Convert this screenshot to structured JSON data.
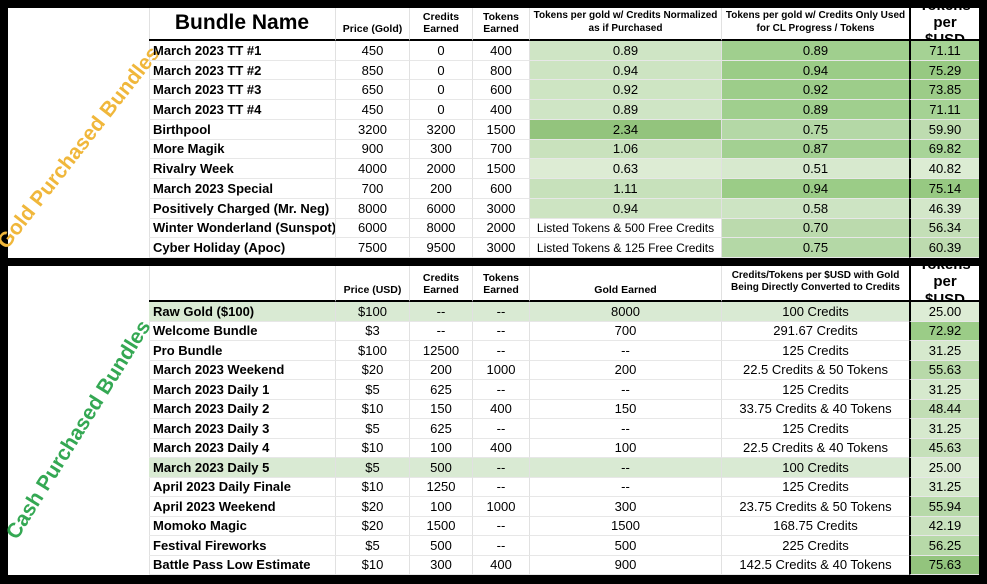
{
  "colors": {
    "gold_label": "#F0B73B",
    "green_label": "#34A853",
    "row_highlight": "#D9EAD3",
    "dark_green_max": "#93C47D"
  },
  "gold_table": {
    "section_label": "Gold Purchased Bundles",
    "headers": {
      "bundle": "Bundle Name",
      "price": "Price (Gold)",
      "credits": "Credits Earned",
      "tokens": "Tokens Earned",
      "c5": "Tokens per gold w/ Credits Normalized as if Purchased",
      "c6": "Tokens per gold w/ Credits Only Used for CL Progress / Tokens",
      "c7": "Tokens per $USD"
    },
    "rows": [
      {
        "name": "March 2023 TT #1",
        "price": "450",
        "credits": "0",
        "tokens": "400",
        "c5": "0.89",
        "c5bg": "#cfe5c5",
        "c6": "0.89",
        "c6bg": "#a0cf8e",
        "c7": "71.11",
        "c7bg": "#a5d294"
      },
      {
        "name": "March 2023 TT #2",
        "price": "850",
        "credits": "0",
        "tokens": "800",
        "c5": "0.94",
        "c5bg": "#cde4c2",
        "c6": "0.94",
        "c6bg": "#9bcc87",
        "c7": "75.29",
        "c7bg": "#97c982"
      },
      {
        "name": "March 2023 TT #3",
        "price": "650",
        "credits": "0",
        "tokens": "600",
        "c5": "0.92",
        "c5bg": "#cee5c3",
        "c6": "0.92",
        "c6bg": "#9dcd8a",
        "c7": "73.85",
        "c7bg": "#9ccc88"
      },
      {
        "name": "March 2023 TT #4",
        "price": "450",
        "credits": "0",
        "tokens": "400",
        "c5": "0.89",
        "c5bg": "#cfe5c5",
        "c6": "0.89",
        "c6bg": "#a0cf8e",
        "c7": "71.11",
        "c7bg": "#a5d294"
      },
      {
        "name": "Birthpool",
        "price": "3200",
        "credits": "3200",
        "tokens": "1500",
        "c5": "2.34",
        "c5bg": "#93c47d",
        "c6": "0.75",
        "c6bg": "#b4d8a6",
        "c7": "59.90",
        "c7bg": "#bedcb0"
      },
      {
        "name": "More Magik",
        "price": "900",
        "credits": "300",
        "tokens": "700",
        "c5": "1.06",
        "c5bg": "#c9e2bd",
        "c6": "0.87",
        "c6bg": "#a3d092",
        "c7": "69.82",
        "c7bg": "#a8d498"
      },
      {
        "name": "Rivalry Week",
        "price": "4000",
        "credits": "2000",
        "tokens": "1500",
        "c5": "0.63",
        "c5bg": "#ddecd4",
        "c6": "0.51",
        "c6bg": "#d7e9ce",
        "c7": "40.82",
        "c7bg": "#dcecd3"
      },
      {
        "name": "March 2023 Special",
        "price": "700",
        "credits": "200",
        "tokens": "600",
        "c5": "1.11",
        "c5bg": "#c7e1bb",
        "c6": "0.94",
        "c6bg": "#9bcc87",
        "c7": "75.14",
        "c7bg": "#97c982"
      },
      {
        "name": "Positively Charged (Mr. Neg)",
        "price": "8000",
        "credits": "6000",
        "tokens": "3000",
        "c5": "0.94",
        "c5bg": "#cde4c2",
        "c6": "0.58",
        "c6bg": "#cde4c3",
        "c7": "46.39",
        "c7bg": "#d3e7c9"
      },
      {
        "name": "Winter Wonderland (Sunspot)",
        "price": "6000",
        "credits": "8000",
        "tokens": "2000",
        "c5": "Listed Tokens & 500 Free Credits",
        "c5bg": null,
        "c6": "0.70",
        "c6bg": "#bbdaad",
        "c7": "56.34",
        "c7bg": "#c4dfb7"
      },
      {
        "name": "Cyber Holiday (Apoc)",
        "price": "7500",
        "credits": "9500",
        "tokens": "3000",
        "c5": "Listed Tokens & 125 Free Credits",
        "c5bg": null,
        "c6": "0.75",
        "c6bg": "#b4d8a6",
        "c7": "60.39",
        "c7bg": "#bddbaf"
      }
    ]
  },
  "cash_table": {
    "section_label": "Cash Purchased Bundles",
    "headers": {
      "bundle": "",
      "price": "Price (USD)",
      "credits": "Credits Earned",
      "tokens": "Tokens Earned",
      "c5": "Gold Earned",
      "c6": "Credits/Tokens per $USD with Gold Being Directly Converted to Credits",
      "c7": "Tokens per $USD"
    },
    "rows": [
      {
        "name": "Raw Gold ($100)",
        "price": "$100",
        "credits": "--",
        "tokens": "--",
        "c5": "8000",
        "c6": "100 Credits",
        "c7": "25.00",
        "c7bg": "#ddecd5",
        "hl": true
      },
      {
        "name": "Welcome Bundle",
        "price": "$3",
        "credits": "--",
        "tokens": "--",
        "c5": "700",
        "c6": "291.67 Credits",
        "c7": "72.92",
        "c7bg": "#9bcc87"
      },
      {
        "name": "Pro Bundle",
        "price": "$100",
        "credits": "12500",
        "tokens": "--",
        "c5": "--",
        "c6": "125 Credits",
        "c7": "31.25",
        "c7bg": "#d6e9cd"
      },
      {
        "name": "March 2023 Weekend",
        "price": "$20",
        "credits": "200",
        "tokens": "1000",
        "c5": "200",
        "c6": "22.5 Credits & 50 Tokens",
        "c7": "55.63",
        "c7bg": "#b8d9a9"
      },
      {
        "name": "March 2023 Daily 1",
        "price": "$5",
        "credits": "625",
        "tokens": "--",
        "c5": "--",
        "c6": "125 Credits",
        "c7": "31.25",
        "c7bg": "#d6e9cd"
      },
      {
        "name": "March 2023 Daily 2",
        "price": "$10",
        "credits": "150",
        "tokens": "400",
        "c5": "150",
        "c6": "33.75 Credits & 40 Tokens",
        "c7": "48.44",
        "c7bg": "#c2deb5"
      },
      {
        "name": "March 2023 Daily 3",
        "price": "$5",
        "credits": "625",
        "tokens": "--",
        "c5": "--",
        "c6": "125 Credits",
        "c7": "31.25",
        "c7bg": "#d6e9cd"
      },
      {
        "name": "March 2023 Daily 4",
        "price": "$10",
        "credits": "100",
        "tokens": "400",
        "c5": "100",
        "c6": "22.5 Credits & 40 Tokens",
        "c7": "45.63",
        "c7bg": "#c6e0ba"
      },
      {
        "name": "March 2023 Daily 5",
        "price": "$5",
        "credits": "500",
        "tokens": "--",
        "c5": "--",
        "c6": "100 Credits",
        "c7": "25.00",
        "c7bg": "#ddecd5",
        "hl": true
      },
      {
        "name": "April 2023 Daily Finale",
        "price": "$10",
        "credits": "1250",
        "tokens": "--",
        "c5": "--",
        "c6": "125 Credits",
        "c7": "31.25",
        "c7bg": "#d6e9cd"
      },
      {
        "name": "April 2023 Weekend",
        "price": "$20",
        "credits": "100",
        "tokens": "1000",
        "c5": "300",
        "c6": "23.75 Credits & 50 Tokens",
        "c7": "55.94",
        "c7bg": "#b7d9a9"
      },
      {
        "name": "Momoko Magic",
        "price": "$20",
        "credits": "1500",
        "tokens": "--",
        "c5": "1500",
        "c6": "168.75 Credits",
        "c7": "42.19",
        "c7bg": "#cae2bf"
      },
      {
        "name": "Festival Fireworks",
        "price": "$5",
        "credits": "500",
        "tokens": "--",
        "c5": "500",
        "c6": "225 Credits",
        "c7": "56.25",
        "c7bg": "#b7d9a8"
      },
      {
        "name": "Battle Pass Low Estimate",
        "price": "$10",
        "credits": "300",
        "tokens": "400",
        "c5": "900",
        "c6": "142.5 Credits & 40 Tokens",
        "c7": "75.63",
        "c7bg": "#93c47d"
      }
    ]
  }
}
